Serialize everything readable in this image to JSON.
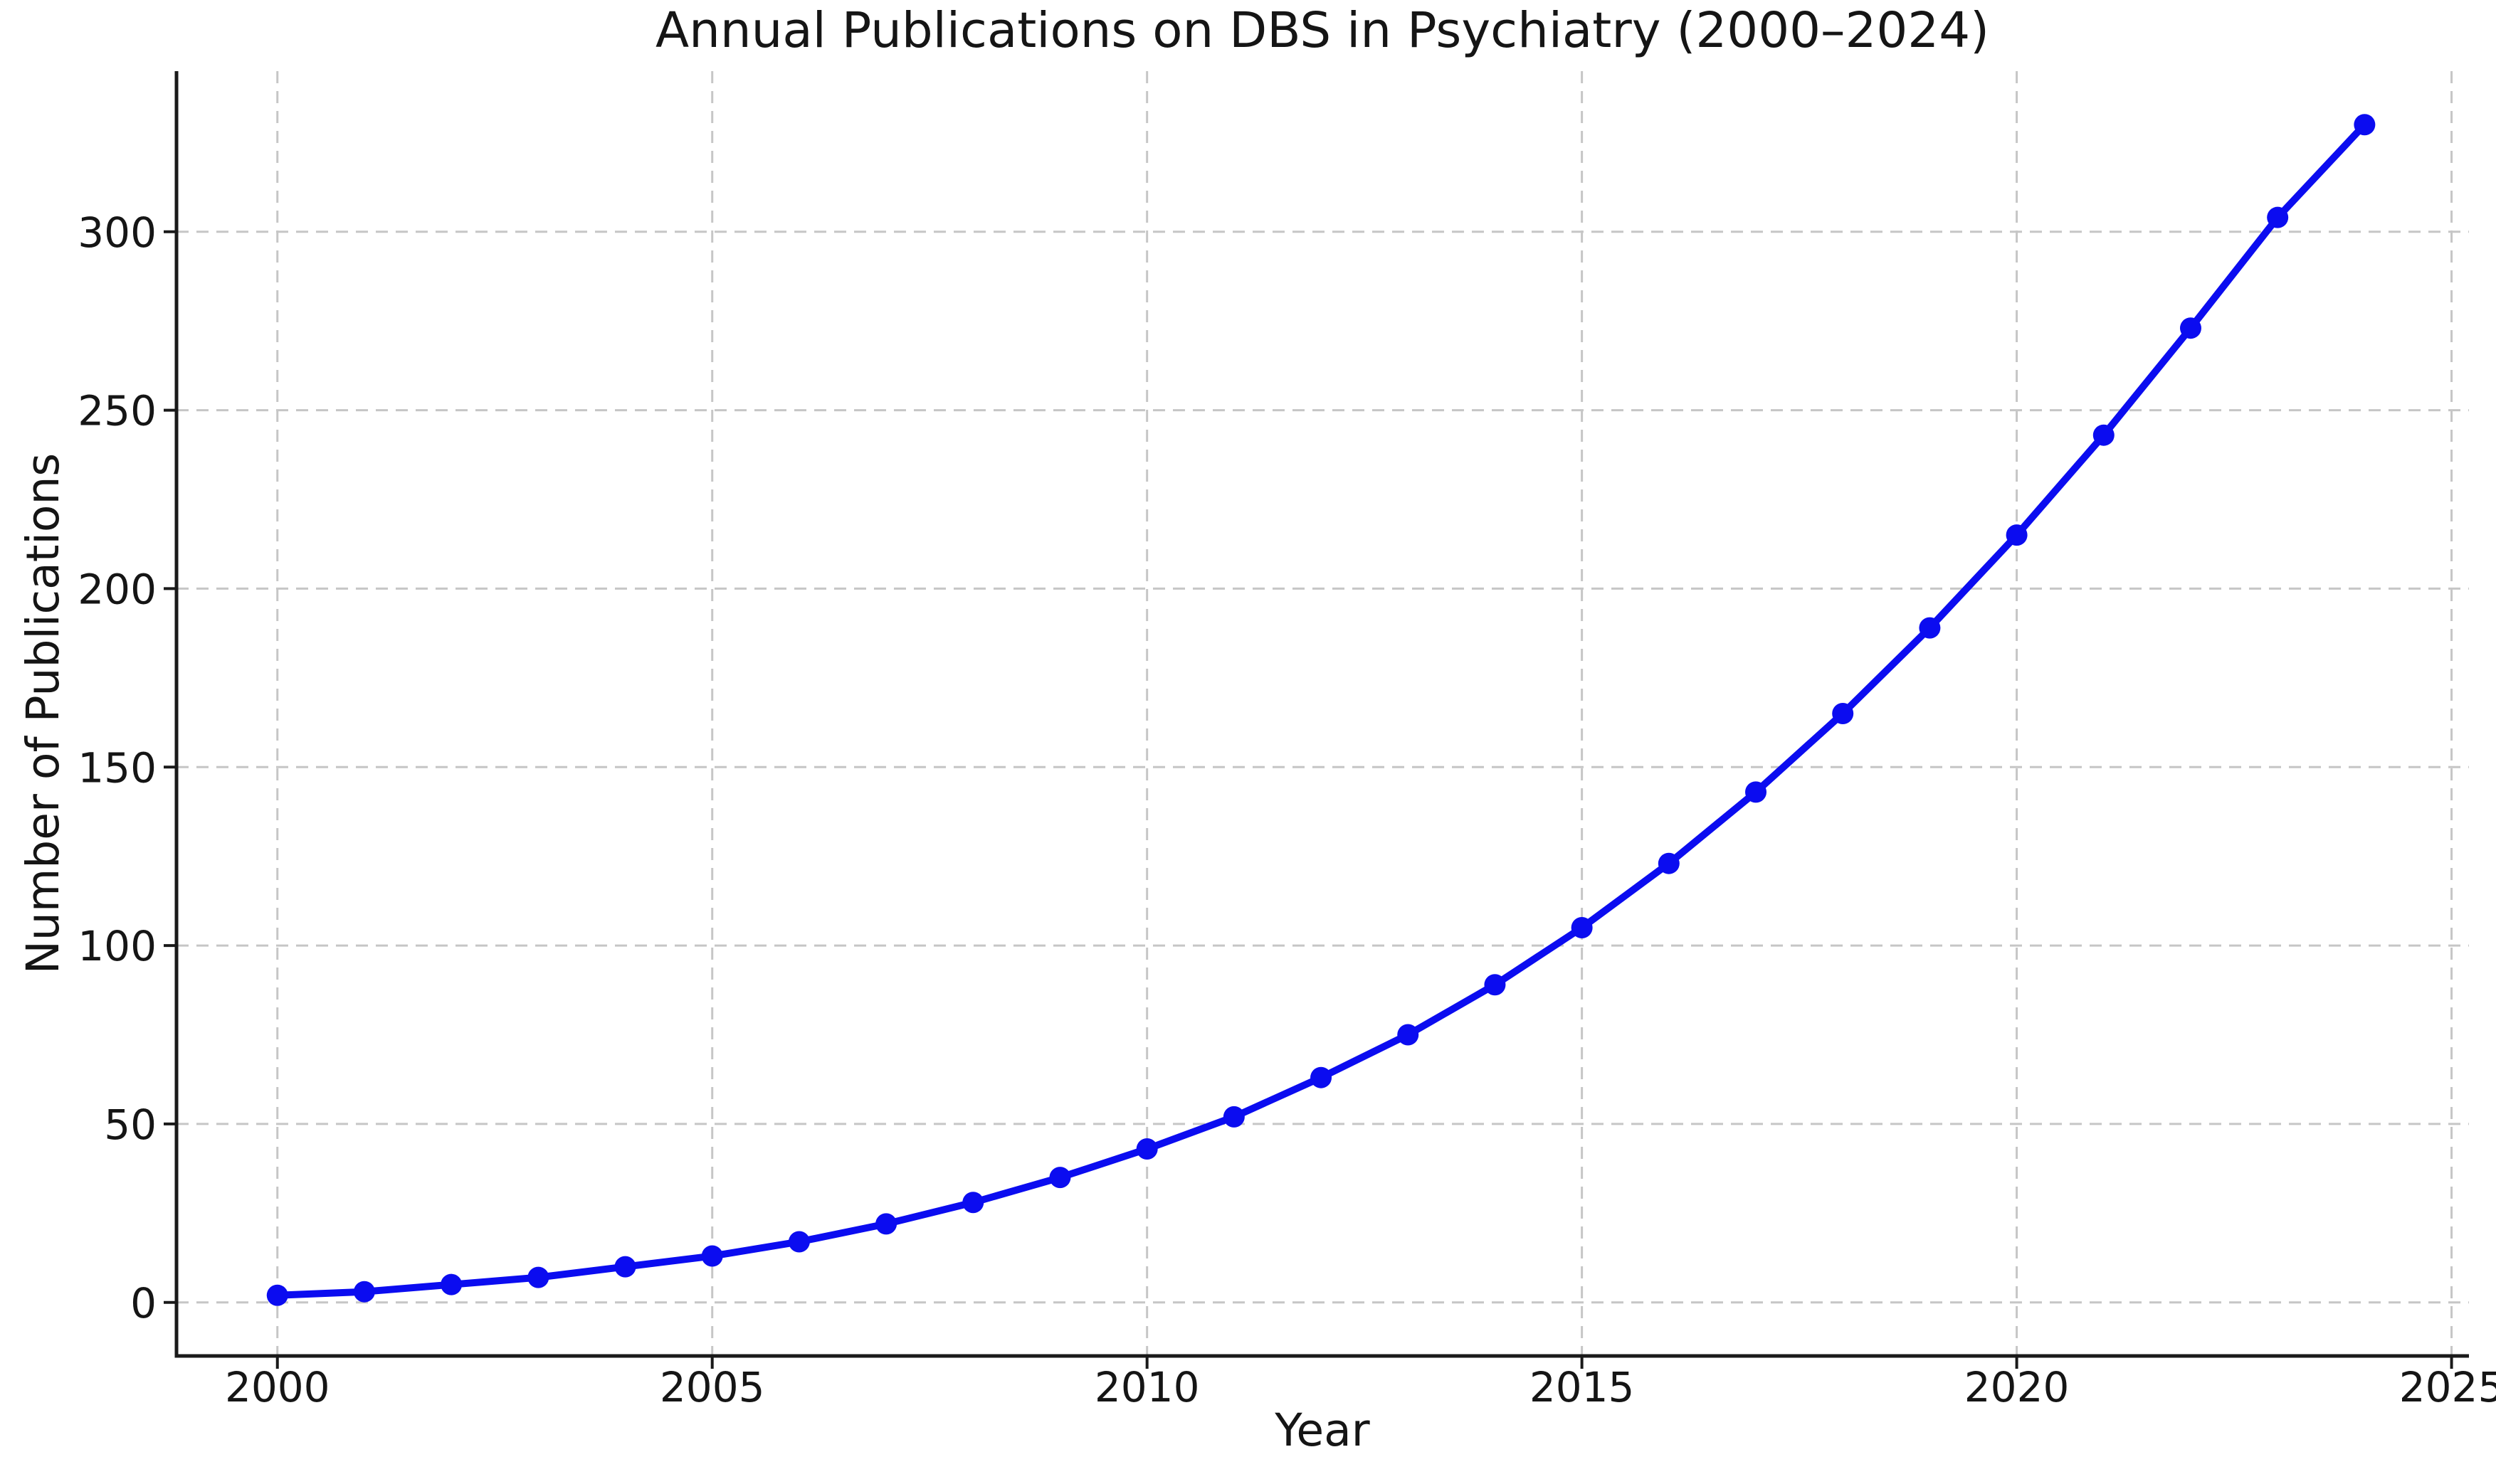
{
  "chart_data": {
    "type": "line",
    "title": "Annual Publications on DBS in Psychiatry (2000–2024)",
    "xlabel": "Year",
    "ylabel": "Number of Publications",
    "x": [
      2000,
      2001,
      2002,
      2003,
      2004,
      2005,
      2006,
      2007,
      2008,
      2009,
      2010,
      2011,
      2012,
      2013,
      2014,
      2015,
      2016,
      2017,
      2018,
      2019,
      2020,
      2021,
      2022,
      2023,
      2024
    ],
    "series": [
      {
        "name": "Annual publications",
        "values": [
          2,
          3,
          5,
          7,
          10,
          13,
          17,
          22,
          28,
          35,
          43,
          52,
          63,
          75,
          89,
          105,
          123,
          143,
          165,
          189,
          215,
          243,
          273,
          304,
          330
        ]
      }
    ],
    "xticks": [
      2000,
      2005,
      2010,
      2015,
      2020,
      2025
    ],
    "yticks": [
      0,
      50,
      100,
      150,
      200,
      250,
      300
    ],
    "xlim": [
      1998.84,
      2025.2
    ],
    "ylim": [
      -15,
      345
    ],
    "grid": true,
    "grid_style": "dashed",
    "legend": "none",
    "marker": "circle",
    "line_color": "#0b0cf0",
    "grid_color": "#c6c6c6",
    "axis_color": "#1a1a1a",
    "background": "#ffffff"
  }
}
